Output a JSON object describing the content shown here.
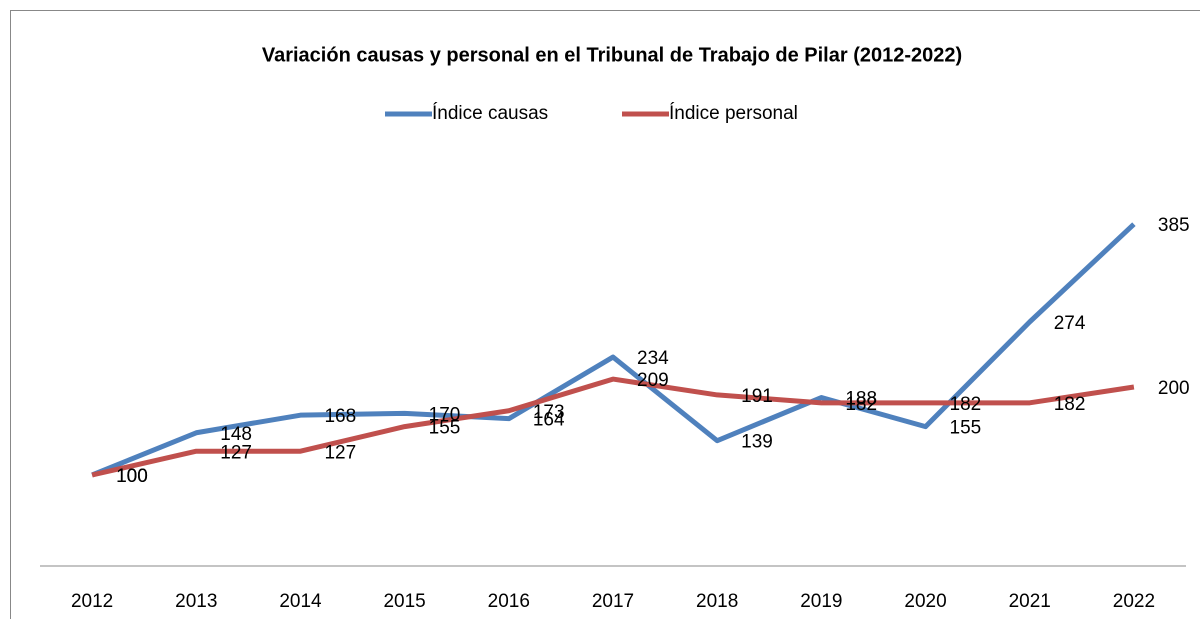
{
  "chart_data": {
    "type": "line",
    "title": "Variación causas y personal en el Tribunal de Trabajo de Pilar (2012-2022)",
    "categories": [
      "2012",
      "2013",
      "2014",
      "2015",
      "2016",
      "2017",
      "2018",
      "2019",
      "2020",
      "2021",
      "2022"
    ],
    "series": [
      {
        "name": "Índice causas",
        "color": "#4f81bd",
        "values": [
          100,
          148,
          168,
          170,
          164,
          234,
          139,
          188,
          155,
          274,
          385
        ]
      },
      {
        "name": "Índice personal",
        "color": "#c0504d",
        "values": [
          100,
          127,
          127,
          155,
          173,
          209,
          191,
          182,
          182,
          182,
          200
        ]
      }
    ],
    "ylim": [
      0,
      450
    ],
    "legend": "top"
  }
}
